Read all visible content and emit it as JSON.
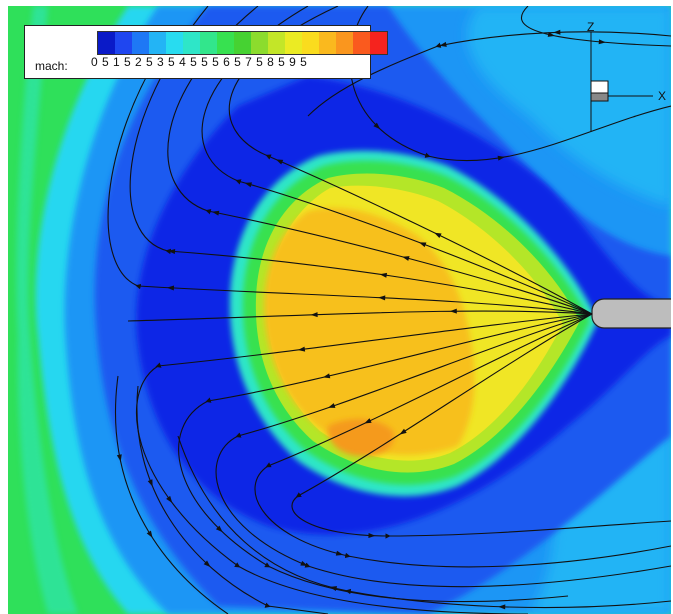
{
  "legend": {
    "variable": "mach:",
    "ticks": "0 5 1 5 2 5 3 5 4 5 5 5 6 5 7 5 8 5 9 5",
    "colors": [
      "#0a1ac8",
      "#1f46f0",
      "#1e78f5",
      "#23b4f5",
      "#28dcf0",
      "#2ee6c8",
      "#32e68c",
      "#37e150",
      "#46d232",
      "#8cdc2d",
      "#c3e628",
      "#ebeb23",
      "#fadc1e",
      "#fab91e",
      "#fa961e",
      "#fa5a1e",
      "#f5231e"
    ]
  },
  "axes": {
    "x": "X",
    "z": "Z"
  },
  "colors": {
    "farfield_green": "#2fe05a",
    "cyan": "#28d7f0",
    "light_blue": "#1e96f5",
    "blue": "#1e5af0",
    "deep_blue": "#1027e6",
    "yellow_green": "#b4e628",
    "yellow": "#f0e625",
    "orange": "#f7c01c",
    "red_orange": "#f59a1e",
    "body_gray": "#bdbdbd",
    "streamline": "#111111"
  }
}
